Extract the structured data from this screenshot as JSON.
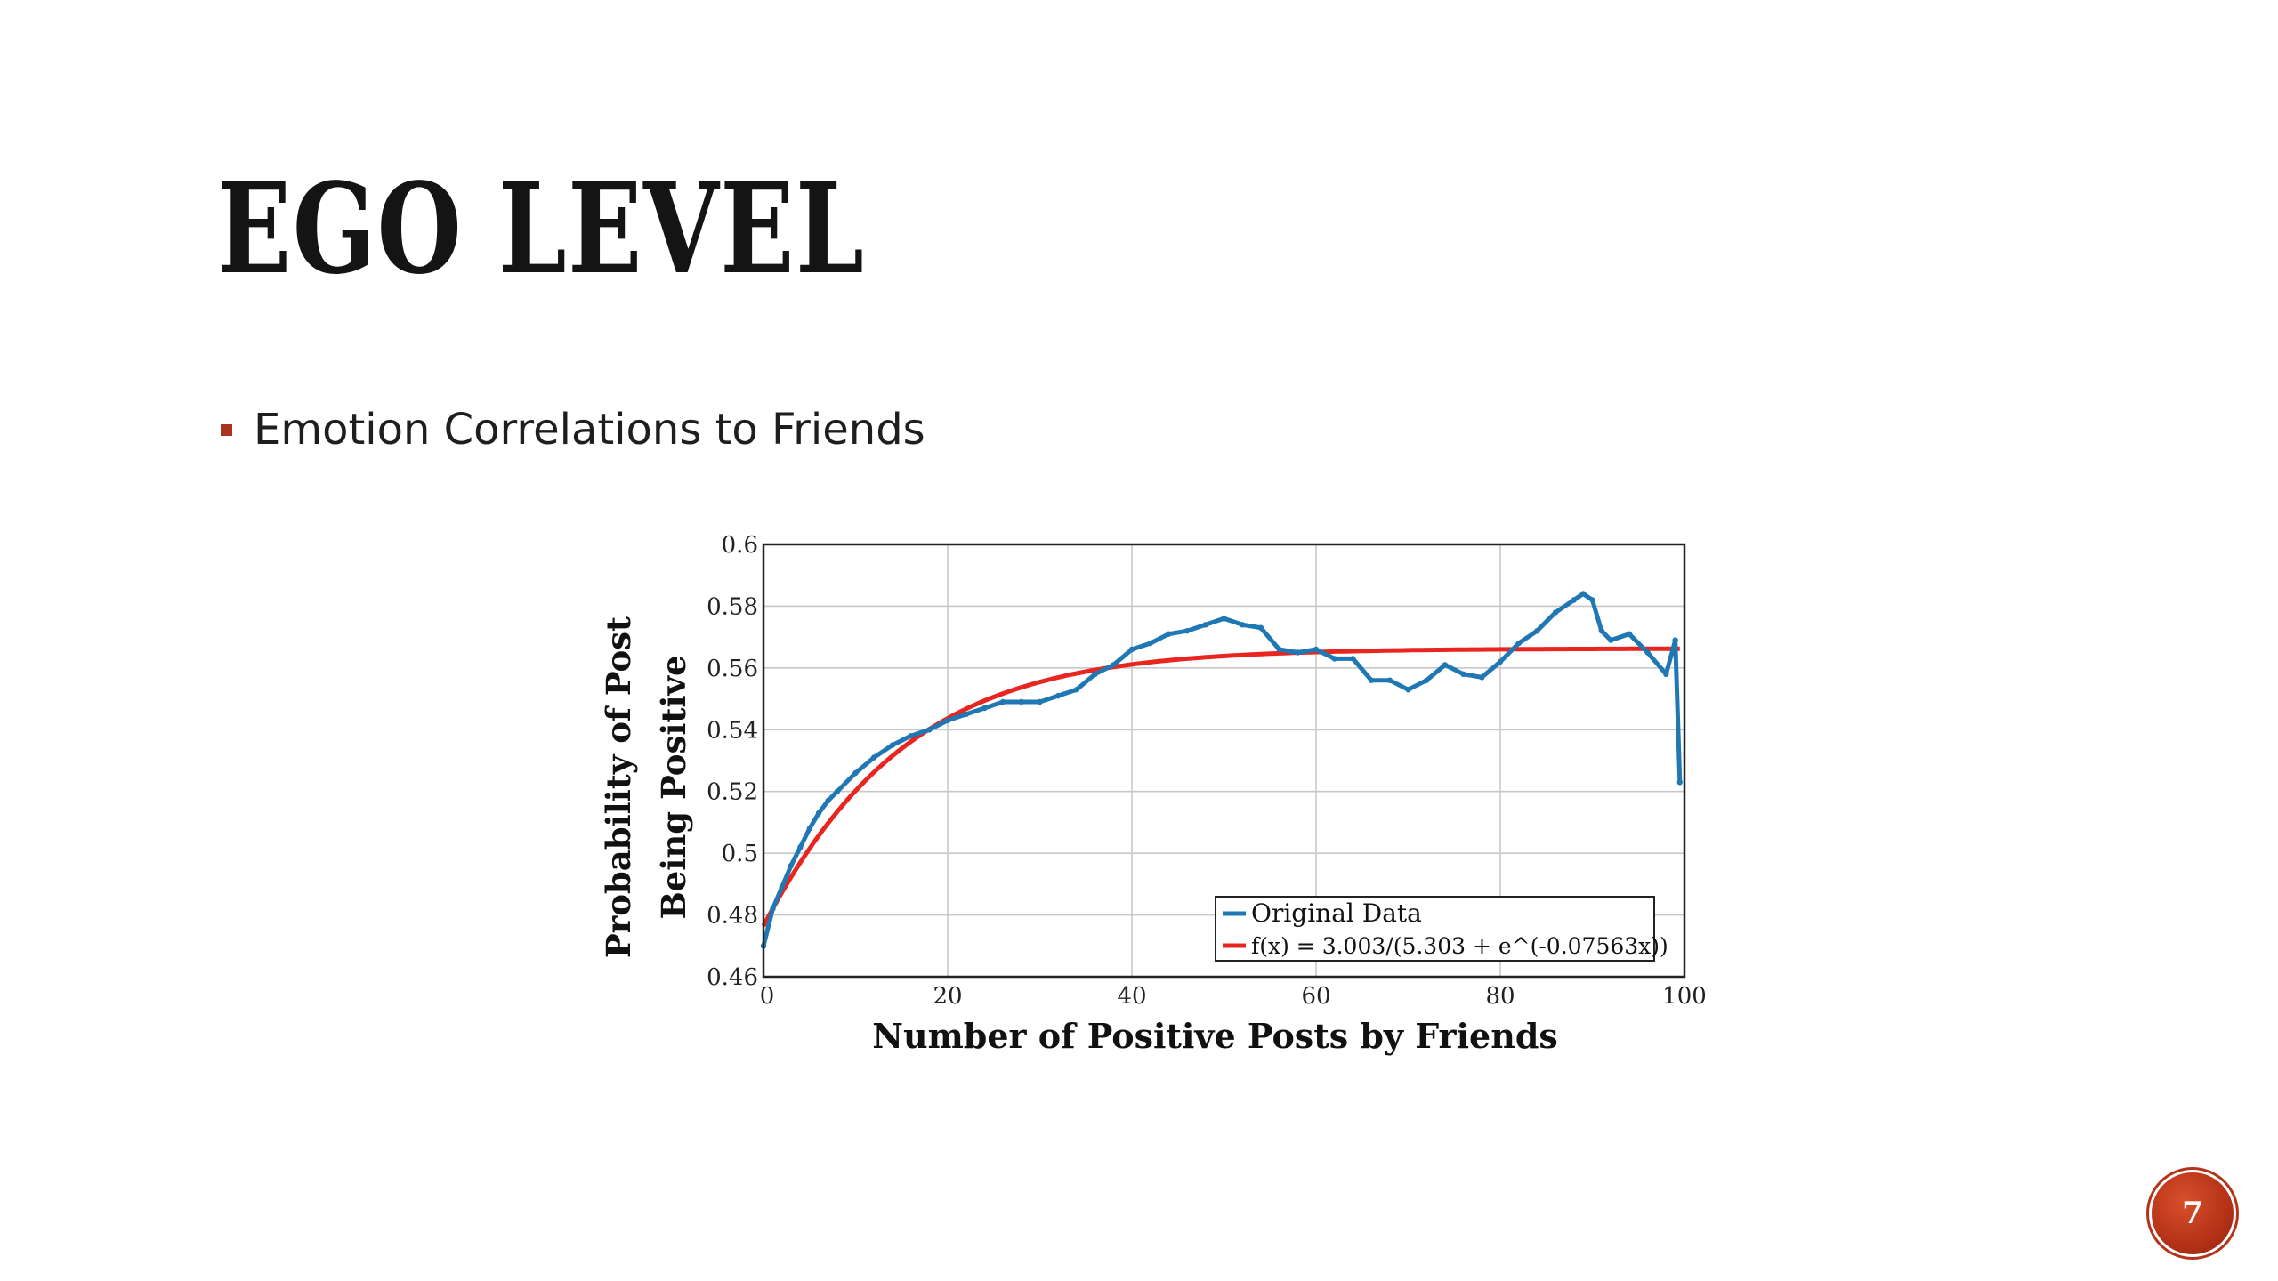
{
  "slide": {
    "title": "EGO LEVEL",
    "bullet": "Emotion Correlations to Friends",
    "page_number": "7",
    "accent_color": "#a8341e"
  },
  "chart_data": {
    "type": "line",
    "xlabel": "Number of Positive Posts by Friends",
    "ylabel_line1": "Probability of Post",
    "ylabel_line2": "Being Positive",
    "xlim": [
      0,
      100
    ],
    "ylim": [
      0.46,
      0.6
    ],
    "x_ticks": [
      0,
      20,
      40,
      60,
      80,
      100
    ],
    "x_tick_labels": [
      "0",
      "20",
      "40",
      "60",
      "80",
      "100"
    ],
    "y_ticks": [
      0.46,
      0.48,
      0.5,
      0.52,
      0.54,
      0.56,
      0.58,
      0.6
    ],
    "y_tick_labels": [
      "0.46",
      "0.48",
      "0.5",
      "0.52",
      "0.54",
      "0.56",
      "0.58",
      "0.6"
    ],
    "grid": true,
    "legend_position": "bottom-right",
    "series": [
      {
        "name": "Original Data",
        "color": "#1f77b4",
        "x": [
          0,
          1,
          2,
          3,
          4,
          5,
          6,
          7,
          8,
          10,
          12,
          14,
          16,
          18,
          20,
          22,
          24,
          26,
          28,
          30,
          32,
          34,
          36,
          38,
          40,
          42,
          44,
          46,
          48,
          50,
          52,
          54,
          56,
          58,
          60,
          62,
          64,
          66,
          68,
          70,
          72,
          74,
          76,
          78,
          80,
          82,
          84,
          86,
          88,
          89,
          90,
          91,
          92,
          94,
          96,
          98,
          99,
          99.5
        ],
        "y": [
          0.47,
          0.482,
          0.489,
          0.496,
          0.502,
          0.508,
          0.513,
          0.517,
          0.52,
          0.526,
          0.531,
          0.535,
          0.538,
          0.54,
          0.543,
          0.545,
          0.547,
          0.549,
          0.549,
          0.549,
          0.551,
          0.553,
          0.558,
          0.561,
          0.566,
          0.568,
          0.571,
          0.572,
          0.574,
          0.576,
          0.574,
          0.573,
          0.566,
          0.565,
          0.566,
          0.563,
          0.563,
          0.556,
          0.556,
          0.553,
          0.556,
          0.561,
          0.558,
          0.557,
          0.562,
          0.568,
          0.572,
          0.578,
          0.582,
          0.584,
          0.582,
          0.572,
          0.569,
          0.571,
          0.565,
          0.558,
          0.569,
          0.523
        ]
      },
      {
        "name": "f(x) = 3.003/(5.303 + e^(-0.07563x))",
        "color": "#e8251f",
        "function": {
          "a": 3.003,
          "b": 5.303,
          "k": 0.07563
        },
        "x_range": [
          0,
          99.5
        ]
      }
    ]
  }
}
